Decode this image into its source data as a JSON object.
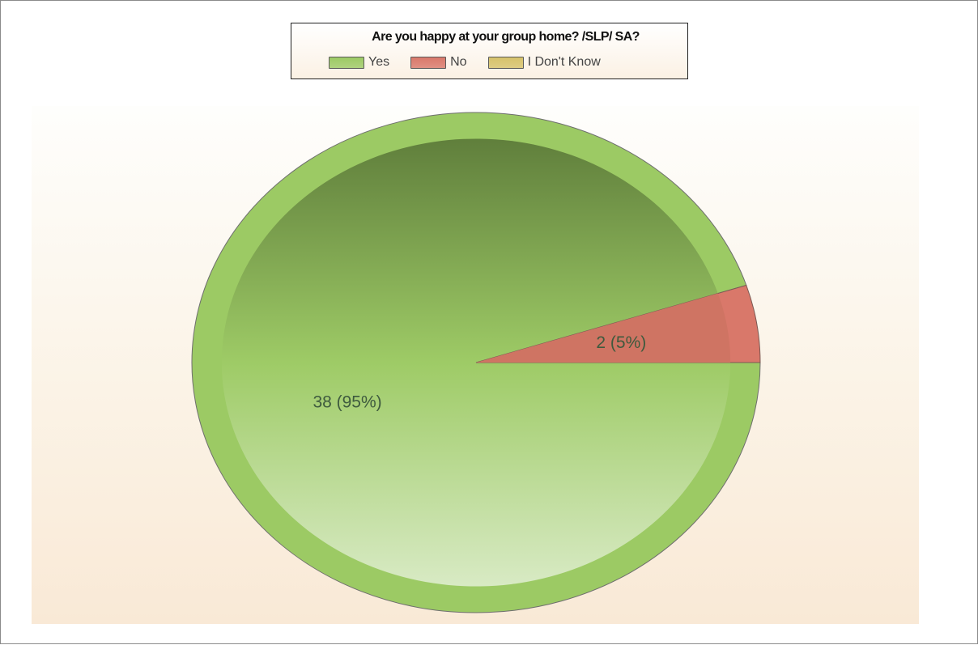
{
  "chart_data": {
    "type": "pie",
    "title": "Are you happy at your group home? /SLP/ SA?",
    "categories": [
      "Yes",
      "No",
      "I Don't Know"
    ],
    "values": [
      38,
      2,
      0
    ],
    "data_labels": [
      "38 (95%)",
      "2 (5%)",
      ""
    ],
    "colors": [
      "#9cca64",
      "#d9786a",
      "#d6c26a"
    ],
    "legend_position": "top"
  }
}
